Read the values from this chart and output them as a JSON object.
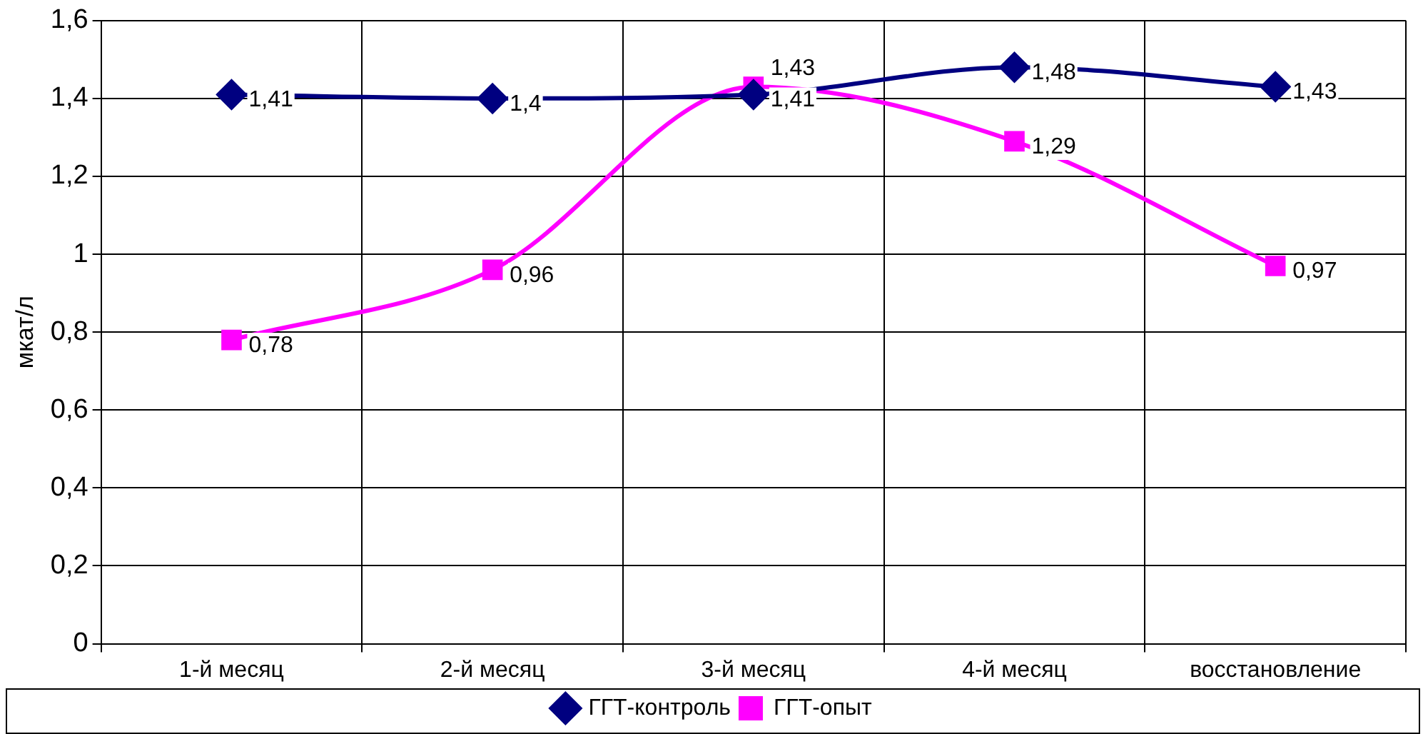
{
  "chart_data": {
    "type": "line",
    "ylabel": "мкат/л",
    "categories": [
      "1-й месяц",
      "2-й месяц",
      "3-й месяц",
      "4-й месяц",
      "восстановление"
    ],
    "series": [
      {
        "name": "ГГТ-контроль",
        "color": "#000080",
        "marker": "diamond",
        "values": [
          1.41,
          1.4,
          1.41,
          1.48,
          1.43
        ],
        "value_labels": [
          "1,41",
          "1,4",
          "1,41",
          "1,48",
          "1,43"
        ]
      },
      {
        "name": "ГГТ-опыт",
        "color": "#ff00ff",
        "marker": "square",
        "values": [
          0.78,
          0.96,
          1.43,
          1.29,
          0.97
        ],
        "value_labels": [
          "0,78",
          "0,96",
          "1,43",
          "1,29",
          "0,97"
        ]
      }
    ],
    "ylim": [
      0,
      1.6
    ],
    "yticks": [
      0,
      {
        "value": 0.2,
        "label": "0,2"
      },
      {
        "value": 0.4,
        "label": "0,4"
      },
      {
        "value": 0.6,
        "label": "0,6"
      },
      {
        "value": 0.8,
        "label": "0,8"
      },
      1,
      {
        "value": 1.2,
        "label": "1,2"
      },
      {
        "value": 1.4,
        "label": "1,4"
      },
      {
        "value": 1.6,
        "label": "1,6"
      }
    ],
    "grid": true,
    "legend": "bottom"
  }
}
